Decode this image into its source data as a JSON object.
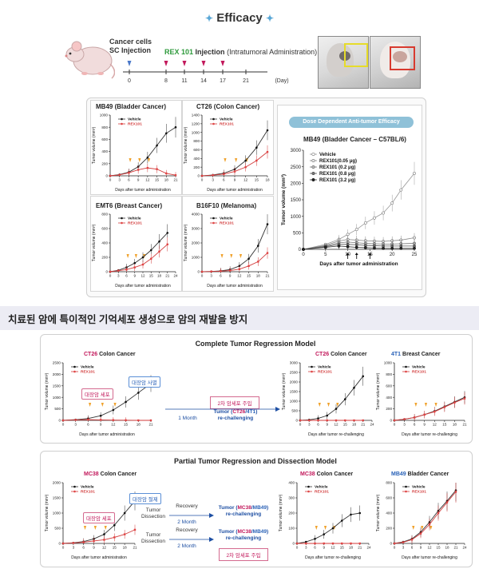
{
  "header": {
    "title": "Efficacy"
  },
  "timeline": {
    "cancer_label": "Cancer cells",
    "sc_label": "SC Injection",
    "rex_name": "REX 101",
    "injection_word": "Injection",
    "admin_note": "(Intratumoral Administration)",
    "ticks": [
      "0",
      "8",
      "11",
      "14",
      "17",
      "21"
    ],
    "unit": "(Day)"
  },
  "panels": {
    "mb49": {
      "title": "MB49 (Bladder Cancer)"
    },
    "ct26": {
      "title": "CT26 (Colon Cancer)"
    },
    "emt6": {
      "title": "EMT6 (Breast Cancer)"
    },
    "b16": {
      "title": "B16F10 (Melanoma)"
    },
    "dose_banner": "Dose Dependent Anti-tumor Efficacy",
    "dose_title": "MB49 (Bladder Cancer – C57BL/6)"
  },
  "common": {
    "ylabel": "Tumor volume (mm³)",
    "xlabel": "Days after tumor administration",
    "xlabel_re": "Days after tumor re-challenging",
    "vehicle": "Vehicle",
    "rex": "REX101"
  },
  "section": {
    "heading": "치료된 암에 특이적인 기억세포 생성으로 암의 재발을 방지"
  },
  "complete": {
    "title": "Complete Tumor Regression Model",
    "chart_title_ct26_pre": "CT26",
    "chart_title_ct26_post": " Colon Cancer",
    "chart_title_4t1_pre": "4T1",
    "chart_title_4t1_post": " Breast Cancer",
    "tag_pink": "대장암 세포",
    "tag_blue": "대장암 사멸",
    "inject_box": "2차 암세포 주입",
    "month": "1 Month",
    "tumor_line_pre": "Tumor (",
    "tumor_line_a": "CT26",
    "tumor_line_sep": "/",
    "tumor_line_b": "4T1",
    "tumor_line_post": ")",
    "rechallenging": "re-challenging"
  },
  "partial": {
    "title": "Partial Tumor Regression and Dissection Model",
    "mc38_pre": "MC38",
    "mc38_post": " Colon Cancer",
    "mb49_pre": "MB49",
    "mb49_post": " Bladder Cancer",
    "tag_blue": "대장암 절제",
    "tag_pink": "대장암 세포",
    "tumor_dissection": "Tumor Dissection",
    "recovery": "Recovery",
    "month": "2 Month",
    "tumor_a": "MC38",
    "tumor_b": "MB49",
    "inject_box": "2차 암세포 주입"
  },
  "chart_data": [
    {
      "type": "line",
      "title": "MB49 (Bladder Cancer)",
      "xlabel": "Days after tumor administration",
      "ylabel": "Tumor volume (mm³)",
      "x": [
        0,
        3,
        6,
        9,
        12,
        15,
        18,
        21
      ],
      "xlim": [
        0,
        21
      ],
      "ylim": [
        0,
        1000
      ],
      "yticks": [
        0,
        200,
        400,
        600,
        800,
        1000
      ],
      "series": [
        {
          "name": "Vehicle",
          "values": [
            0,
            20,
            60,
            150,
            300,
            500,
            700,
            800
          ]
        },
        {
          "name": "REX101",
          "values": [
            0,
            15,
            50,
            100,
            130,
            110,
            40,
            10
          ]
        }
      ]
    },
    {
      "type": "line",
      "title": "CT26 (Colon Cancer)",
      "xlabel": "Days after tumor administration",
      "ylabel": "Tumor volume (mm³)",
      "x": [
        0,
        3,
        6,
        9,
        12,
        15,
        18
      ],
      "xlim": [
        0,
        18
      ],
      "ylim": [
        0,
        1400
      ],
      "yticks": [
        0,
        200,
        400,
        600,
        800,
        1000,
        1200,
        1400
      ],
      "series": [
        {
          "name": "Vehicle",
          "values": [
            0,
            20,
            60,
            150,
            350,
            650,
            1050
          ]
        },
        {
          "name": "REX101",
          "values": [
            0,
            15,
            40,
            100,
            200,
            350,
            550
          ]
        }
      ]
    },
    {
      "type": "line",
      "title": "EMT6 (Breast Cancer)",
      "xlabel": "Days after tumor administration",
      "ylabel": "Tumor volume (mm³)",
      "x": [
        0,
        3,
        6,
        9,
        12,
        15,
        18,
        21
      ],
      "xlim": [
        0,
        24
      ],
      "ylim": [
        0,
        800
      ],
      "yticks": [
        0,
        200,
        400,
        600,
        800
      ],
      "series": [
        {
          "name": "Vehicle",
          "values": [
            0,
            20,
            60,
            120,
            200,
            300,
            420,
            540
          ]
        },
        {
          "name": "REX101",
          "values": [
            0,
            15,
            30,
            60,
            100,
            180,
            280,
            380
          ]
        }
      ]
    },
    {
      "type": "line",
      "title": "B16F10 (Melanoma)",
      "xlabel": "Days after tumor administration",
      "ylabel": "Tumor volume (mm³)",
      "x": [
        0,
        3,
        6,
        9,
        12,
        15,
        18,
        21
      ],
      "xlim": [
        0,
        21
      ],
      "ylim": [
        0,
        4000
      ],
      "yticks": [
        0,
        1000,
        2000,
        3000,
        4000
      ],
      "series": [
        {
          "name": "Vehicle",
          "values": [
            0,
            20,
            60,
            150,
            400,
            900,
            1800,
            3300
          ]
        },
        {
          "name": "REX101",
          "values": [
            0,
            15,
            40,
            80,
            180,
            400,
            700,
            1300
          ]
        }
      ]
    },
    {
      "type": "line",
      "title": "MB49 (Bladder Cancer – C57BL/6)",
      "xlabel": "Days after tumor administration",
      "ylabel": "Tumor volume (mm³)",
      "x": [
        0,
        5,
        8,
        10,
        12,
        14,
        16,
        18,
        20,
        22,
        25
      ],
      "xlim": [
        0,
        25
      ],
      "ylim": [
        0,
        3000
      ],
      "yticks": [
        0,
        500,
        1000,
        1500,
        2000,
        2500,
        3000
      ],
      "series": [
        {
          "name": "Vehicle",
          "values": [
            0,
            150,
            300,
            450,
            600,
            800,
            950,
            1100,
            1400,
            1800,
            2300
          ]
        },
        {
          "name": "REX101(0.05 μg)",
          "values": [
            0,
            120,
            250,
            300,
            280,
            260,
            250,
            240,
            260,
            280,
            350
          ]
        },
        {
          "name": "REX101 (0.2 μg)",
          "values": [
            0,
            100,
            200,
            220,
            200,
            180,
            170,
            160,
            160,
            170,
            180
          ]
        },
        {
          "name": "REX101 (0.8 μg)",
          "values": [
            0,
            80,
            150,
            150,
            140,
            120,
            110,
            100,
            100,
            100,
            100
          ]
        },
        {
          "name": "REX101 (3.2 μg)",
          "values": [
            0,
            60,
            100,
            80,
            60,
            50,
            40,
            30,
            30,
            30,
            30
          ]
        }
      ]
    },
    {
      "type": "line",
      "title": "CT26 Colon Cancer",
      "xlabel": "Days after tumor administration",
      "ylabel": "Tumor volume (mm³)",
      "x": [
        0,
        3,
        6,
        9,
        12,
        15,
        18,
        21
      ],
      "xlim": [
        0,
        21
      ],
      "ylim": [
        0,
        2500
      ],
      "yticks": [
        0,
        500,
        1000,
        1500,
        2000,
        2500
      ],
      "series": [
        {
          "name": "Vehicle",
          "values": [
            0,
            30,
            80,
            200,
            450,
            800,
            1200,
            1600
          ]
        },
        {
          "name": "REX101",
          "values": [
            0,
            20,
            30,
            20,
            10,
            5,
            0,
            0
          ]
        }
      ]
    },
    {
      "type": "line",
      "title": "CT26 Colon Cancer",
      "xlabel": "Days after tumor re-challenging",
      "ylabel": "Tumor volume (mm³)",
      "x": [
        0,
        3,
        6,
        9,
        12,
        15,
        18,
        21
      ],
      "xlim": [
        0,
        24
      ],
      "ylim": [
        0,
        3000
      ],
      "yticks": [
        0,
        500,
        1000,
        1500,
        2000,
        2500,
        3000
      ],
      "series": [
        {
          "name": "Vehicle",
          "values": [
            0,
            30,
            100,
            250,
            600,
            1100,
            1700,
            2300
          ]
        },
        {
          "name": "REX101",
          "values": [
            0,
            0,
            0,
            0,
            0,
            0,
            0,
            0
          ]
        }
      ]
    },
    {
      "type": "line",
      "title": "4T1 Breast Cancer",
      "xlabel": "Days after tumor re-challenging",
      "ylabel": "Tumor volume (mm³)",
      "x": [
        0,
        3,
        6,
        9,
        12,
        15,
        18,
        21
      ],
      "xlim": [
        0,
        21
      ],
      "ylim": [
        0,
        1000
      ],
      "yticks": [
        0,
        200,
        400,
        600,
        800,
        1000
      ],
      "series": [
        {
          "name": "Vehicle",
          "values": [
            0,
            20,
            50,
            100,
            160,
            240,
            320,
            400
          ]
        },
        {
          "name": "REX101",
          "values": [
            0,
            20,
            50,
            100,
            150,
            230,
            310,
            380
          ]
        }
      ]
    },
    {
      "type": "line",
      "title": "MC38 Colon Cancer",
      "xlabel": "Days after tumor administration",
      "ylabel": "Tumor volume (mm³)",
      "x": [
        0,
        3,
        6,
        9,
        12,
        15,
        18,
        21
      ],
      "xlim": [
        0,
        21
      ],
      "ylim": [
        0,
        2000
      ],
      "yticks": [
        0,
        500,
        1000,
        1500,
        2000
      ],
      "series": [
        {
          "name": "Vehicle",
          "values": [
            0,
            20,
            60,
            150,
            300,
            600,
            1000,
            1400
          ]
        },
        {
          "name": "REX101",
          "values": [
            0,
            15,
            40,
            80,
            120,
            200,
            300,
            450
          ]
        }
      ]
    },
    {
      "type": "line",
      "title": "MC38 Colon Cancer",
      "xlabel": "Days after tumor re-challenging",
      "ylabel": "Tumor volume (mm³)",
      "x": [
        0,
        3,
        6,
        9,
        12,
        15,
        18,
        21
      ],
      "xlim": [
        0,
        24
      ],
      "ylim": [
        0,
        400
      ],
      "yticks": [
        0,
        100,
        200,
        300,
        400
      ],
      "series": [
        {
          "name": "Vehicle",
          "values": [
            0,
            10,
            30,
            60,
            100,
            150,
            190,
            200
          ]
        },
        {
          "name": "REX101",
          "values": [
            0,
            0,
            0,
            0,
            0,
            0,
            0,
            0
          ]
        }
      ]
    },
    {
      "type": "line",
      "title": "MB49 Bladder Cancer",
      "xlabel": "Days after tumor re-challenging",
      "ylabel": "Tumor volume (mm³)",
      "x": [
        0,
        3,
        6,
        9,
        12,
        15,
        18,
        21
      ],
      "xlim": [
        0,
        24
      ],
      "ylim": [
        0,
        800
      ],
      "yticks": [
        0,
        200,
        400,
        600,
        800
      ],
      "series": [
        {
          "name": "Vehicle",
          "values": [
            0,
            20,
            60,
            150,
            280,
            430,
            560,
            700
          ]
        },
        {
          "name": "REX101",
          "values": [
            0,
            15,
            50,
            130,
            250,
            400,
            540,
            680
          ]
        }
      ]
    }
  ]
}
